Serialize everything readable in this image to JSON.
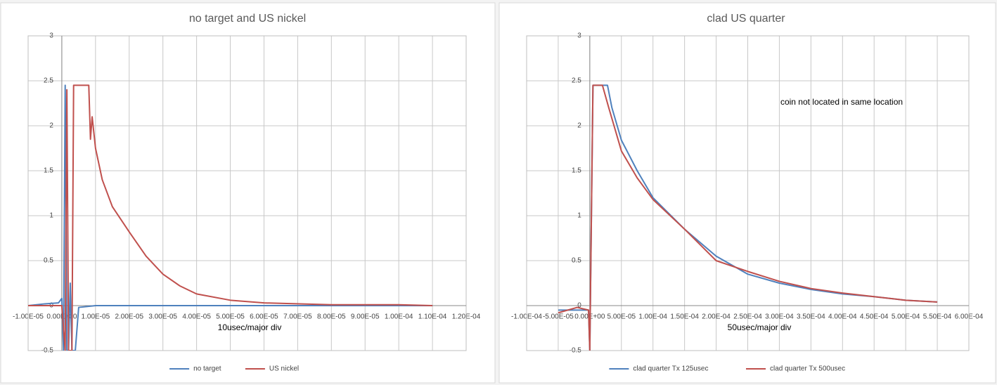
{
  "chart_data": [
    {
      "type": "line",
      "title": "no target and US nickel",
      "x_label": "10usec/major div",
      "xlim": [
        -1e-05,
        0.00012
      ],
      "xticks": [
        {
          "value": -1e-05,
          "label": "-1.00E-05"
        },
        {
          "value": 0,
          "label": "0.00E+00"
        },
        {
          "value": 1e-05,
          "label": "1.00E-05"
        },
        {
          "value": 2e-05,
          "label": "2.00E-05"
        },
        {
          "value": 3e-05,
          "label": "3.00E-05"
        },
        {
          "value": 4e-05,
          "label": "4.00E-05"
        },
        {
          "value": 5e-05,
          "label": "5.00E-05"
        },
        {
          "value": 6e-05,
          "label": "6.00E-05"
        },
        {
          "value": 7e-05,
          "label": "7.00E-05"
        },
        {
          "value": 8e-05,
          "label": "8.00E-05"
        },
        {
          "value": 9e-05,
          "label": "9.00E-05"
        },
        {
          "value": 0.0001,
          "label": "1.00E-04"
        },
        {
          "value": 0.00011,
          "label": "1.10E-04"
        },
        {
          "value": 0.00012,
          "label": "1.20E-04"
        }
      ],
      "ylim": [
        -0.5,
        3
      ],
      "yticks": [
        -0.5,
        0,
        0.5,
        1,
        1.5,
        2,
        2.5,
        3
      ],
      "grid": true,
      "legend": "bottom",
      "series": [
        {
          "name": "no target",
          "color": "#4f81bd",
          "x": [
            -1e-05,
            -5e-06,
            -1e-06,
            0,
            5e-07,
            1e-06,
            1.5e-06,
            2e-06,
            2.5e-06,
            3e-06,
            4e-06,
            5e-06,
            1e-05,
            3e-05,
            6e-05,
            9e-05,
            0.00011
          ],
          "values": [
            0,
            0.02,
            0.03,
            0.08,
            -0.5,
            2.45,
            -0.5,
            -0.5,
            0.25,
            -0.5,
            -0.5,
            -0.02,
            0,
            0,
            0,
            0,
            0
          ]
        },
        {
          "name": "US  nickel",
          "color": "#c0504d",
          "x": [
            -1e-05,
            -5e-06,
            0,
            1e-06,
            1.5e-06,
            2e-06,
            3e-06,
            3.5e-06,
            4e-06,
            8e-06,
            8.5e-06,
            9e-06,
            1e-05,
            1.2e-05,
            1.5e-05,
            2e-05,
            2.5e-05,
            3e-05,
            3.5e-05,
            4e-05,
            5e-05,
            6e-05,
            8e-05,
            0.0001,
            0.00011
          ],
          "values": [
            0,
            0,
            0,
            -0.5,
            2.4,
            -0.5,
            -0.5,
            2.45,
            2.45,
            2.45,
            1.85,
            2.1,
            1.75,
            1.4,
            1.1,
            0.82,
            0.55,
            0.35,
            0.22,
            0.13,
            0.06,
            0.03,
            0.01,
            0.01,
            0
          ]
        }
      ]
    },
    {
      "type": "line",
      "title": "clad US quarter",
      "x_label": "50usec/major div",
      "annotation": "coin not located in same location",
      "xlim": [
        -0.0001,
        0.0006
      ],
      "xticks": [
        {
          "value": -0.0001,
          "label": "-1.00E-04"
        },
        {
          "value": -5e-05,
          "label": "-5.00E-05"
        },
        {
          "value": 0,
          "label": "0.00E+00"
        },
        {
          "value": 5e-05,
          "label": "5.00E-05"
        },
        {
          "value": 0.0001,
          "label": "1.00E-04"
        },
        {
          "value": 0.00015,
          "label": "1.50E-04"
        },
        {
          "value": 0.0002,
          "label": "2.00E-04"
        },
        {
          "value": 0.00025,
          "label": "2.50E-04"
        },
        {
          "value": 0.0003,
          "label": "3.00E-04"
        },
        {
          "value": 0.00035,
          "label": "3.50E-04"
        },
        {
          "value": 0.0004,
          "label": "4.00E-04"
        },
        {
          "value": 0.00045,
          "label": "4.50E-04"
        },
        {
          "value": 0.0005,
          "label": "5.00E-04"
        },
        {
          "value": 0.00055,
          "label": "5.50E-04"
        },
        {
          "value": 0.0006,
          "label": "6.00E-04"
        }
      ],
      "ylim": [
        -0.5,
        3
      ],
      "yticks": [
        -0.5,
        0,
        0.5,
        1,
        1.5,
        2,
        2.5,
        3
      ],
      "grid": true,
      "legend": "bottom",
      "series": [
        {
          "name": "clad quarter Tx 125usec",
          "color": "#4f81bd",
          "x": [
            -5e-05,
            -2e-05,
            -2e-06,
            0,
            5e-06,
            1e-05,
            2.8e-05,
            3.5e-05,
            5e-05,
            7.5e-05,
            0.0001,
            0.00015,
            0.0002,
            0.00025,
            0.0003,
            0.00035,
            0.0004,
            0.00045,
            0.0005,
            0.00055
          ],
          "values": [
            -0.05,
            -0.05,
            -0.05,
            -0.5,
            2.45,
            2.45,
            2.45,
            2.2,
            1.84,
            1.5,
            1.2,
            0.85,
            0.55,
            0.35,
            0.25,
            0.18,
            0.13,
            0.1,
            0.06,
            0.04
          ]
        },
        {
          "name": "clad quarter Tx 500usec",
          "color": "#c0504d",
          "x": [
            -5e-05,
            -2e-05,
            -2e-06,
            0,
            5e-06,
            2e-05,
            3e-05,
            5e-05,
            7.5e-05,
            0.0001,
            0.00015,
            0.0002,
            0.00025,
            0.0003,
            0.00035,
            0.0004,
            0.00045,
            0.0005,
            0.00055
          ],
          "values": [
            -0.08,
            -0.02,
            -0.05,
            -0.5,
            2.45,
            2.45,
            2.2,
            1.72,
            1.42,
            1.18,
            0.85,
            0.5,
            0.38,
            0.27,
            0.19,
            0.14,
            0.1,
            0.06,
            0.04
          ]
        }
      ]
    }
  ]
}
